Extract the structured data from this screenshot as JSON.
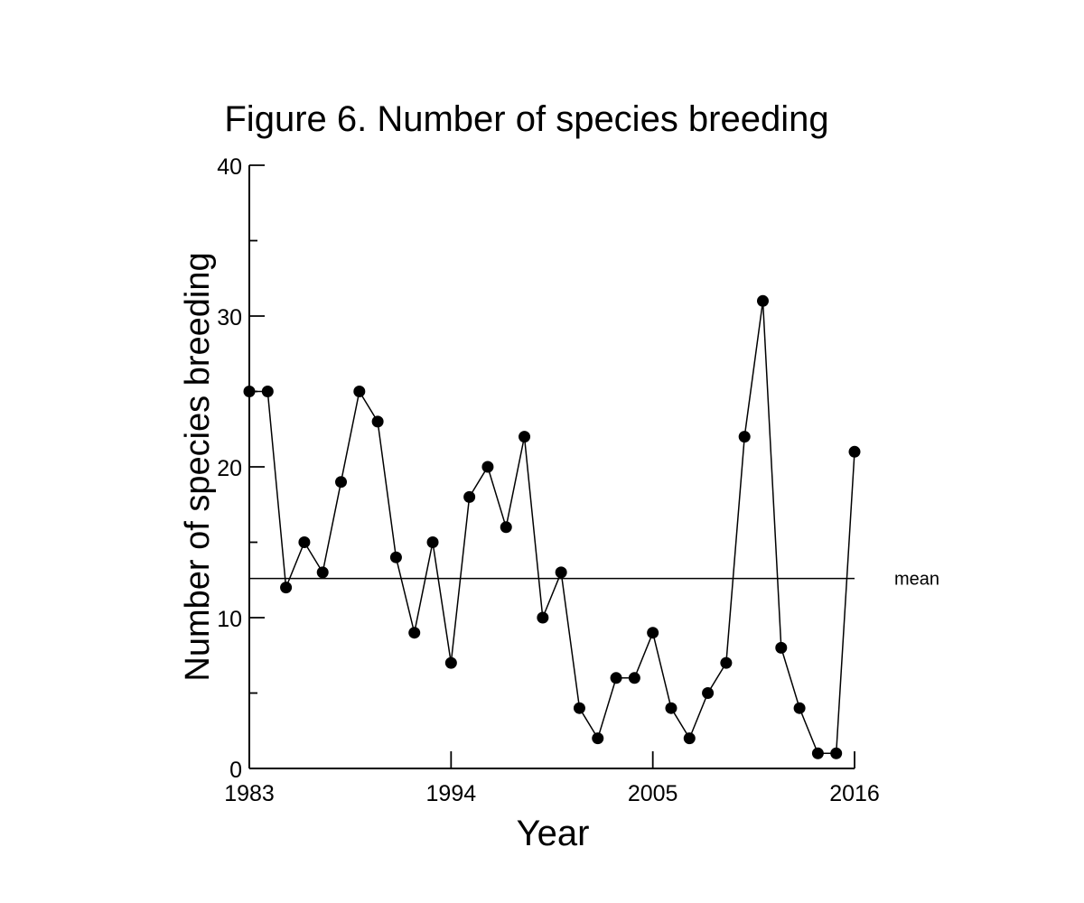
{
  "chart_data": {
    "type": "line",
    "title": "Figure 6. Number of species breeding",
    "xlabel": "Year",
    "ylabel": "Number of species breeding",
    "xlim": [
      1983,
      2016
    ],
    "ylim": [
      0,
      40
    ],
    "x_ticks": [
      1983,
      1994,
      2005,
      2016
    ],
    "y_ticks": [
      0,
      10,
      20,
      30,
      40
    ],
    "y_minor_ticks": [
      5,
      15,
      25,
      35
    ],
    "grid": false,
    "series": [
      {
        "x": [
          1983,
          1984,
          1985,
          1986,
          1987,
          1988,
          1989,
          1990,
          1991,
          1992,
          1993,
          1994,
          1995,
          1996,
          1997,
          1998,
          1999,
          2000,
          2001,
          2002,
          2003,
          2004,
          2005,
          2006,
          2007,
          2008,
          2009,
          2010,
          2011,
          2012,
          2013,
          2014,
          2015,
          2016
        ],
        "values": [
          25,
          25,
          12,
          15,
          13,
          19,
          25,
          23,
          14,
          9,
          15,
          7,
          18,
          20,
          16,
          22,
          10,
          13,
          4,
          2,
          6,
          6,
          9,
          4,
          2,
          5,
          7,
          22,
          31,
          8,
          4,
          1,
          1,
          21
        ]
      }
    ],
    "annotations": [
      {
        "text": "mean",
        "y": 12.6
      }
    ]
  }
}
